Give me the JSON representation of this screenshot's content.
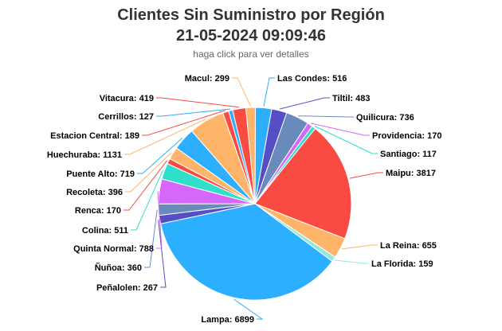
{
  "chart_data": {
    "type": "pie",
    "title": "Clientes Sin Suministro por Región",
    "subtitle": "21-05-2024 09:09:46",
    "caption": "haga click para ver detalles",
    "slices": [
      {
        "label": "Las Condes",
        "value": 516,
        "color": "#2caffe"
      },
      {
        "label": "Tiltil",
        "value": 483,
        "color": "#544fc5"
      },
      {
        "label": "Quilicura",
        "value": 736,
        "color": "#6b8abc"
      },
      {
        "label": "Providencia",
        "value": 170,
        "color": "#d568fb"
      },
      {
        "label": "Santiago",
        "value": 117,
        "color": "#2ee0ca"
      },
      {
        "label": "Maipu",
        "value": 3817,
        "color": "#fa4b42"
      },
      {
        "label": "La Reina",
        "value": 655,
        "color": "#feb56a"
      },
      {
        "label": "La Florida",
        "value": 159,
        "color": "#91e8e1"
      },
      {
        "label": "Lampa",
        "value": 6899,
        "color": "#2caffe"
      },
      {
        "label": "Peñalolen",
        "value": 267,
        "color": "#544fc5"
      },
      {
        "label": "Ñuñoa",
        "value": 360,
        "color": "#6b8abc"
      },
      {
        "label": "Quinta Normal",
        "value": 788,
        "color": "#d568fb"
      },
      {
        "label": "Colina",
        "value": 511,
        "color": "#2ee0ca"
      },
      {
        "label": "Renca",
        "value": 170,
        "color": "#fa4b42"
      },
      {
        "label": "Recoleta",
        "value": 396,
        "color": "#feb56a"
      },
      {
        "label": "Puente Alto",
        "value": 719,
        "color": "#2caffe"
      },
      {
        "label": "Huechuraba",
        "value": 1131,
        "color": "#feb56a"
      },
      {
        "label": "Estacion Central",
        "value": 189,
        "color": "#fa4b42"
      },
      {
        "label": "Cerrillos",
        "value": 127,
        "color": "#2caffe"
      },
      {
        "label": "Vitacura",
        "value": 419,
        "color": "#fa4b42"
      },
      {
        "label": "Macul",
        "value": 299,
        "color": "#feb56a"
      }
    ]
  }
}
